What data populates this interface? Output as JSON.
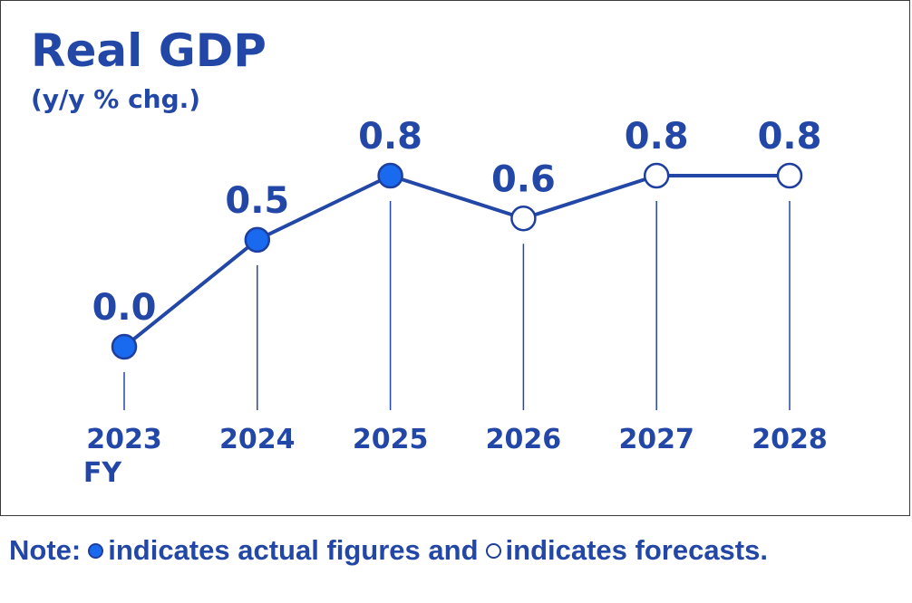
{
  "chart_data": {
    "type": "line",
    "title": "Real GDP",
    "subtitle": "(y/y % chg.)",
    "categories": [
      "2023",
      "2024",
      "2025",
      "2026",
      "2027",
      "2028"
    ],
    "x_unit_label": "FY",
    "series": [
      {
        "values": [
          0.0,
          0.5,
          0.8,
          0.6,
          0.8,
          0.8
        ],
        "value_labels": [
          "0.0",
          "0.5",
          "0.8",
          "0.6",
          "0.8",
          "0.8"
        ],
        "marker": [
          "filled",
          "filled",
          "filled",
          "hollow",
          "hollow",
          "hollow"
        ]
      }
    ],
    "ylim": [
      0,
      0.8
    ],
    "grid": false,
    "colors": {
      "text": "#2347a6",
      "line": "#2347a6",
      "marker_fill": "#1a6af0",
      "marker_stroke": "#1f3f9e"
    }
  },
  "note": {
    "prefix": "Note:",
    "actual_text": "indicates actual figures and",
    "forecast_text": "indicates forecasts."
  }
}
